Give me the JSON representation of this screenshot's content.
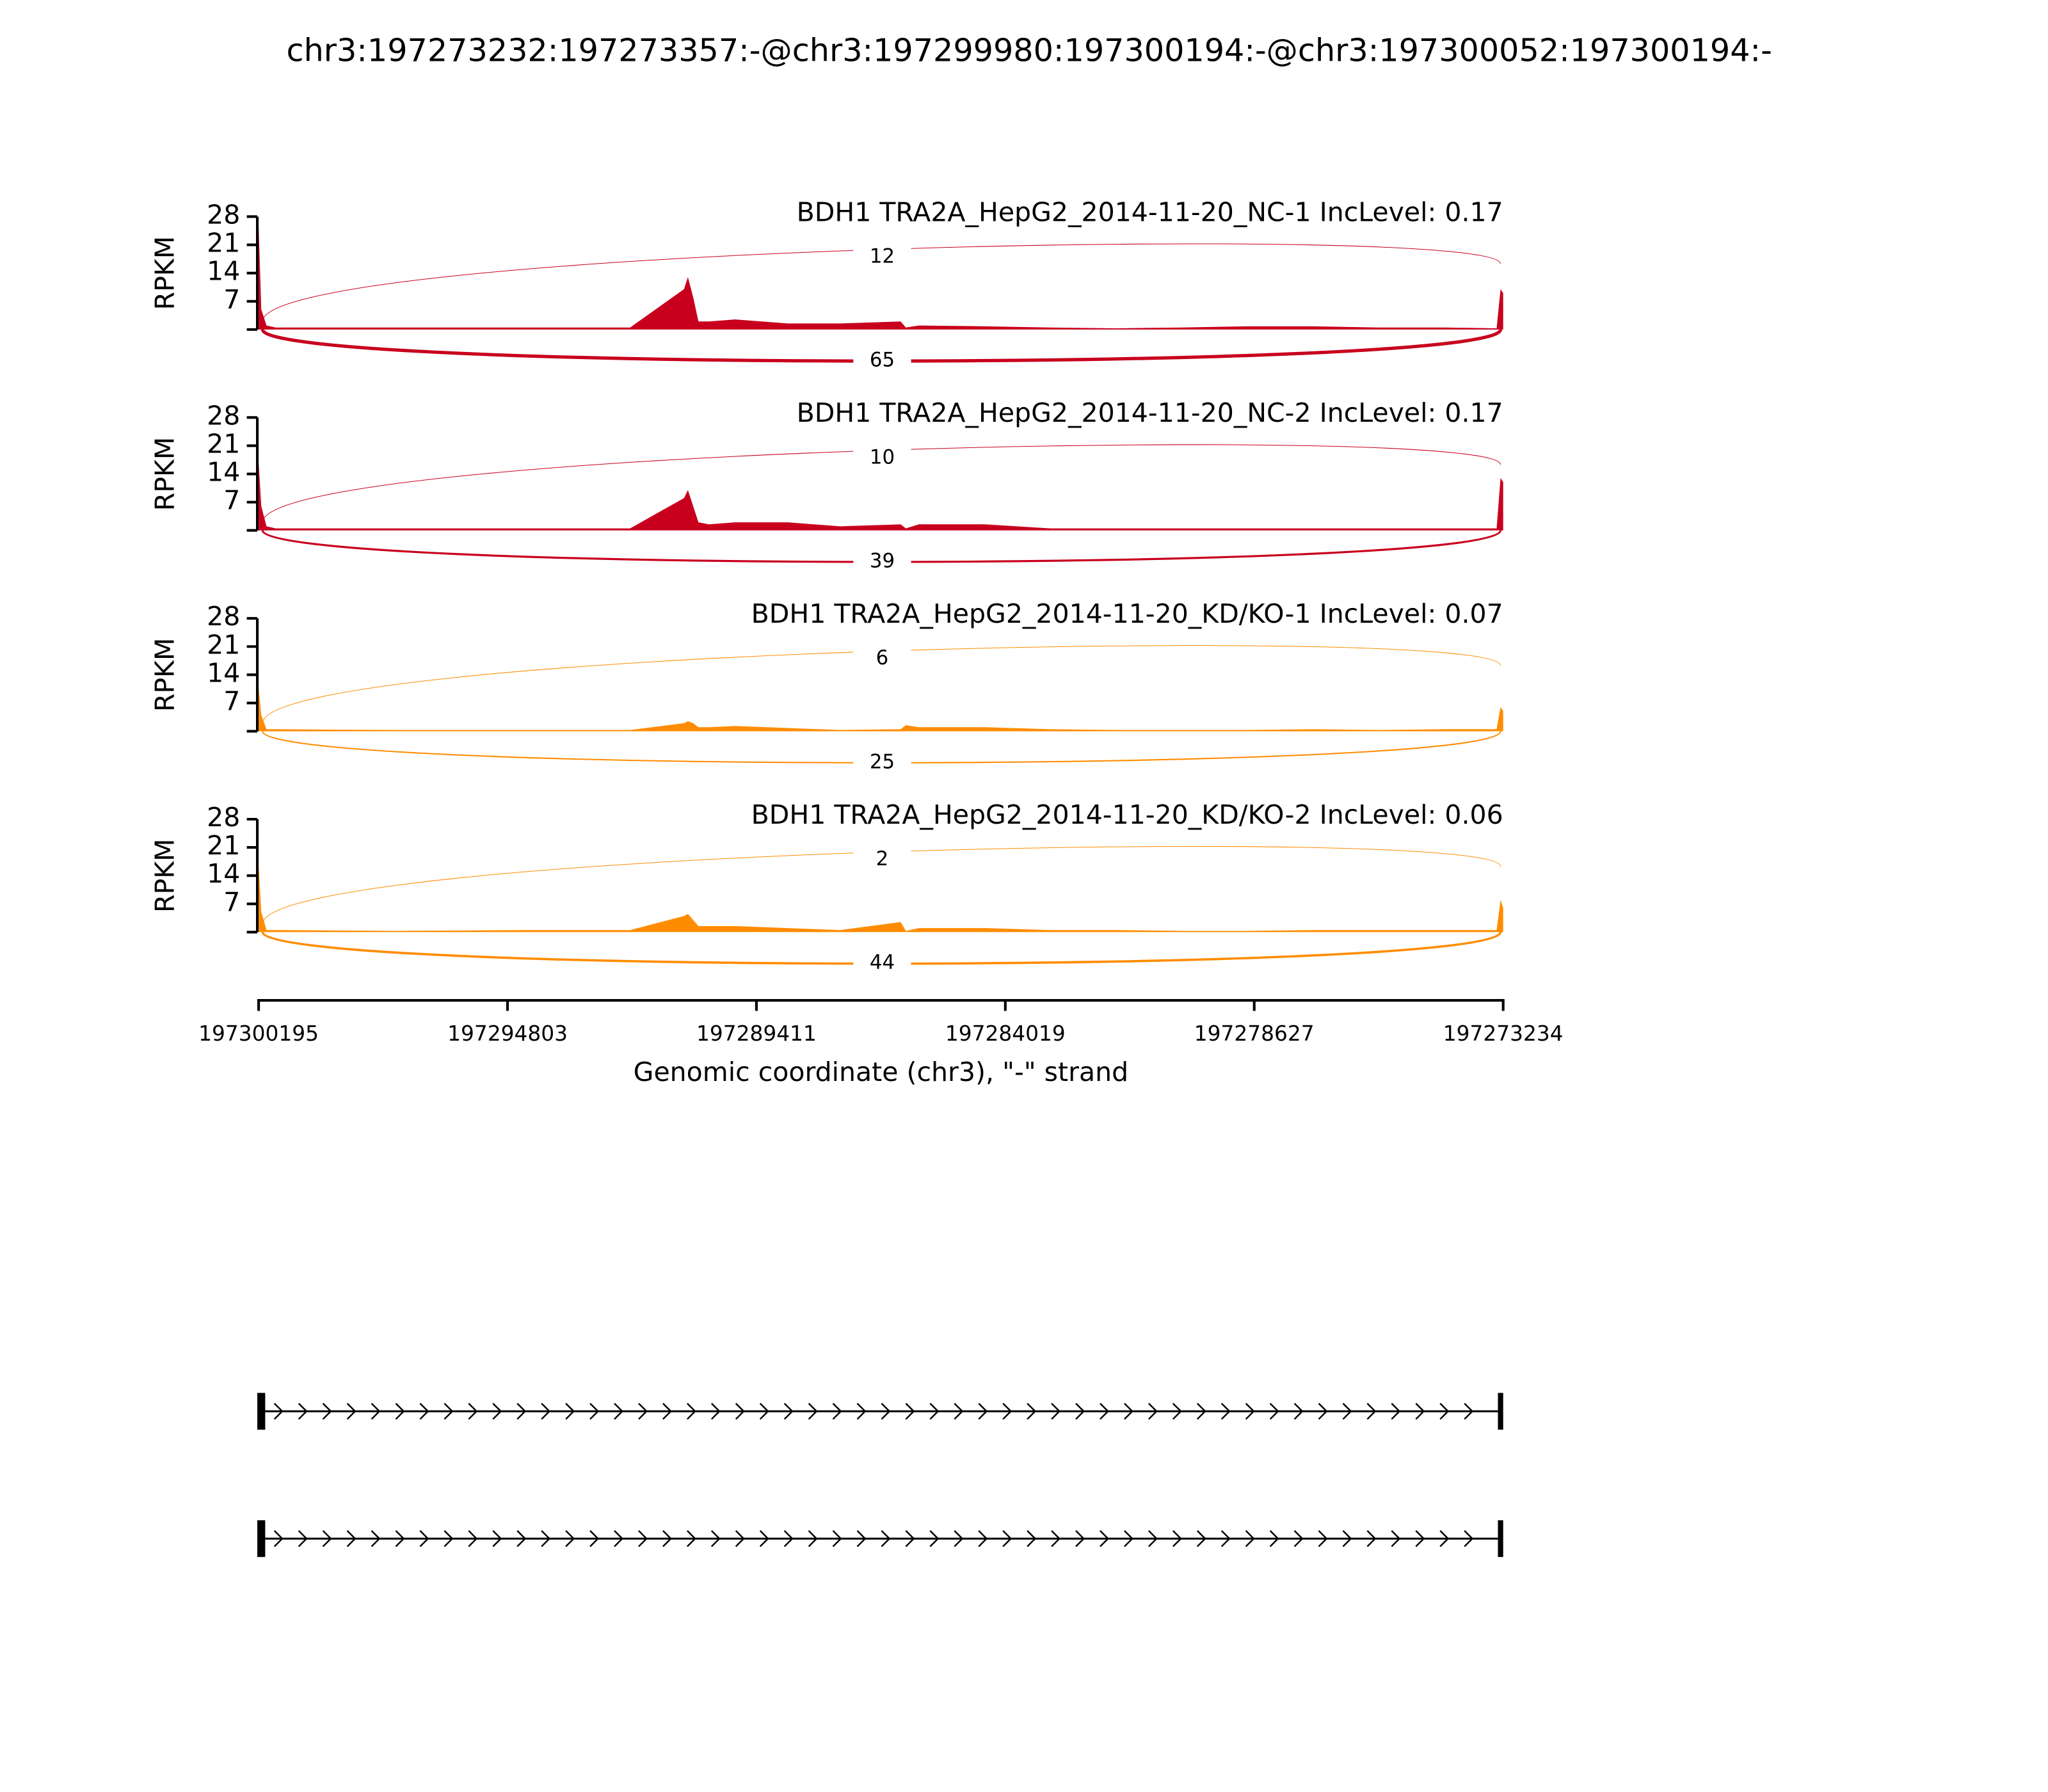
{
  "figure": {
    "title": "chr3:197273232:197273357:-@chr3:197299980:197300194:-@chr3:197300052:197300194:-",
    "xlabel": "Genomic coordinate (chr3), \"-\" strand",
    "xlim": [
      197300195,
      197273234
    ],
    "xticks": [
      197300195,
      197294803,
      197289411,
      197284019,
      197278627,
      197273234
    ]
  },
  "chart_data": [
    {
      "type": "area",
      "title": "BDH1 TRA2A_HepG2_2014-11-20_NC-1 IncLevel: 0.17",
      "ylabel": "RPKM",
      "color": "#c8001e",
      "ylim": [
        0,
        28
      ],
      "yticks": [
        7,
        14,
        21,
        28
      ],
      "x": [
        197300195,
        197300138,
        197300024,
        197299825,
        197297266,
        197294422,
        197292147,
        197290981,
        197290895,
        197290781,
        197290667,
        197290440,
        197289871,
        197288733,
        197287596,
        197286288,
        197286174,
        197285889,
        197284467,
        197283045,
        197281623,
        197280201,
        197278779,
        197277357,
        197275935,
        197274513,
        197273376,
        197273291,
        197273234
      ],
      "values": [
        26,
        5,
        1,
        0.5,
        0.5,
        0.5,
        0.5,
        10,
        13,
        8,
        2,
        2,
        2.5,
        1.5,
        1.5,
        2,
        0.5,
        1,
        0.8,
        0.5,
        0.3,
        0.5,
        0.8,
        0.8,
        0.5,
        0.5,
        0.3,
        10,
        9
      ],
      "junctions": [
        {
          "count": 12
        },
        {
          "count": 65
        }
      ]
    },
    {
      "type": "area",
      "title": "BDH1 TRA2A_HepG2_2014-11-20_NC-2 IncLevel: 0.17",
      "ylabel": "RPKM",
      "color": "#c8001e",
      "ylim": [
        0,
        28
      ],
      "yticks": [
        7,
        14,
        21,
        28
      ],
      "x": [
        197300195,
        197300138,
        197300024,
        197299825,
        197297266,
        197294422,
        197292147,
        197290981,
        197290895,
        197290781,
        197290667,
        197290440,
        197289871,
        197288733,
        197287596,
        197286288,
        197286174,
        197285889,
        197284467,
        197283045,
        197281623,
        197280201,
        197278779,
        197277357,
        197275935,
        197274513,
        197273376,
        197273291,
        197273234
      ],
      "values": [
        17,
        6,
        1,
        0.5,
        0.5,
        0.5,
        0.5,
        8,
        10,
        6,
        2,
        1.5,
        2,
        2,
        1,
        1.5,
        0.5,
        1.5,
        1.5,
        0.5,
        0.5,
        0.5,
        0.5,
        0.5,
        0.5,
        0.5,
        0.5,
        13,
        12
      ],
      "junctions": [
        {
          "count": 10
        },
        {
          "count": 39
        }
      ]
    },
    {
      "type": "area",
      "title": "BDH1 TRA2A_HepG2_2014-11-20_KD/KO-1 IncLevel: 0.07",
      "ylabel": "RPKM",
      "color": "#ff8c00",
      "ylim": [
        0,
        28
      ],
      "yticks": [
        7,
        14,
        21,
        28
      ],
      "x": [
        197300195,
        197300138,
        197300024,
        197299825,
        197297266,
        197294422,
        197292147,
        197290981,
        197290895,
        197290781,
        197290667,
        197290440,
        197289871,
        197288733,
        197287596,
        197286288,
        197286174,
        197285889,
        197284467,
        197283045,
        197281623,
        197280201,
        197278779,
        197277357,
        197275935,
        197274513,
        197273376,
        197273291,
        197273234
      ],
      "values": [
        11,
        4,
        0.5,
        0.5,
        0.3,
        0.3,
        0.3,
        2,
        2.5,
        2,
        1,
        1,
        1.3,
        0.8,
        0.3,
        0.5,
        1.5,
        1,
        1,
        0.5,
        0.3,
        0.3,
        0.3,
        0.5,
        0.3,
        0.5,
        0.5,
        6,
        5
      ],
      "junctions": [
        {
          "count": 6
        },
        {
          "count": 25
        }
      ]
    },
    {
      "type": "area",
      "title": "BDH1 TRA2A_HepG2_2014-11-20_KD/KO-2 IncLevel: 0.06",
      "ylabel": "RPKM",
      "color": "#ff8c00",
      "ylim": [
        0,
        28
      ],
      "yticks": [
        7,
        14,
        21,
        28
      ],
      "x": [
        197300195,
        197300138,
        197300024,
        197299825,
        197297266,
        197294422,
        197292147,
        197290981,
        197290895,
        197290781,
        197290667,
        197290440,
        197289871,
        197288733,
        197287596,
        197286288,
        197286174,
        197285889,
        197284467,
        197283045,
        197281623,
        197280201,
        197278779,
        197277357,
        197275935,
        197274513,
        197273376,
        197273291,
        197273234
      ],
      "values": [
        17,
        5,
        0.5,
        0.5,
        0.3,
        0.5,
        0.5,
        4,
        4.5,
        3,
        1.5,
        1.5,
        1.5,
        1,
        0.5,
        2.5,
        0.3,
        1,
        1,
        0.5,
        0.5,
        0.3,
        0.3,
        0.5,
        0.5,
        0.5,
        0.5,
        8,
        6
      ],
      "junctions": [
        {
          "count": 2
        },
        {
          "count": 44
        }
      ]
    }
  ]
}
